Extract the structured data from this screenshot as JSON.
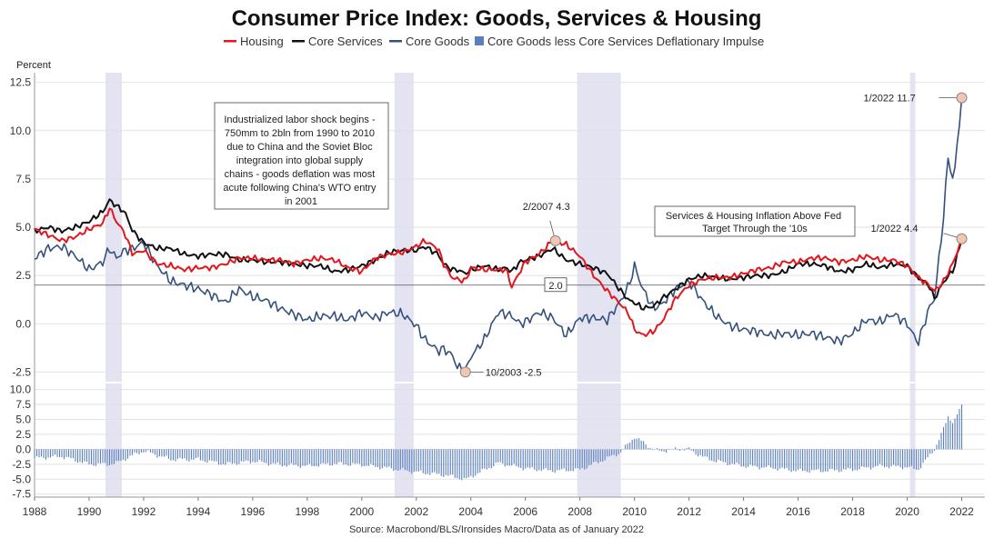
{
  "chart_data": {
    "type": "line",
    "title": "Consumer Price Index: Goods, Services & Housing",
    "ylabel": "Percent",
    "source": "Source: Macrobond/BLS/Ironsides Macro/Data as of January 2022",
    "x_ticks": [
      "1988",
      "1990",
      "1992",
      "1994",
      "1996",
      "1998",
      "2000",
      "2002",
      "2004",
      "2006",
      "2008",
      "2010",
      "2012",
      "2014",
      "2016",
      "2018",
      "2020",
      "2022"
    ],
    "upper_ylim": [
      -3,
      13
    ],
    "upper_ticks": [
      "12.5",
      "10.0",
      "7.5",
      "5.0",
      "2.5",
      "0.0",
      "-2.5"
    ],
    "lower_ylim": [
      -8,
      11
    ],
    "lower_ticks": [
      "10.0",
      "7.5",
      "5.0",
      "2.5",
      "0.0",
      "-2.5",
      "-5.0",
      "-7.5"
    ],
    "recessions": [
      [
        1990.6,
        1991.2
      ],
      [
        2001.2,
        2001.9
      ],
      [
        2007.9,
        2009.5
      ],
      [
        2020.1,
        2020.3
      ]
    ],
    "reference_line": {
      "value": 2.0,
      "label": "2.0"
    },
    "legend": [
      {
        "name": "Housing",
        "color": "#e3161d"
      },
      {
        "name": "Core Services",
        "color": "#111111"
      },
      {
        "name": "Core Goods",
        "color": "#34507e"
      },
      {
        "name": "Core Goods less Core Services Deflationary Impulse",
        "color": "#5a7fbd"
      }
    ],
    "series": [
      {
        "name": "Housing",
        "color": "#e3161d",
        "points": [
          [
            1988,
            4.9
          ],
          [
            1988.5,
            4.6
          ],
          [
            1989,
            4.3
          ],
          [
            1989.5,
            4.5
          ],
          [
            1990,
            4.9
          ],
          [
            1990.5,
            5.2
          ],
          [
            1990.75,
            6.0
          ],
          [
            1991,
            5.3
          ],
          [
            1991.3,
            4.7
          ],
          [
            1991.6,
            3.6
          ],
          [
            1992,
            3.8
          ],
          [
            1992.5,
            3.1
          ],
          [
            1993,
            3.0
          ],
          [
            1993.5,
            2.8
          ],
          [
            1994,
            2.9
          ],
          [
            1994.5,
            2.9
          ],
          [
            1995,
            3.1
          ],
          [
            1995.5,
            3.4
          ],
          [
            1996,
            3.4
          ],
          [
            1996.5,
            3.3
          ],
          [
            1997,
            3.3
          ],
          [
            1997.5,
            3.1
          ],
          [
            1998,
            3.3
          ],
          [
            1998.5,
            3.4
          ],
          [
            1999,
            3.3
          ],
          [
            1999.5,
            2.9
          ],
          [
            2000,
            2.7
          ],
          [
            2000.5,
            3.4
          ],
          [
            2001,
            3.6
          ],
          [
            2001.5,
            3.7
          ],
          [
            2002,
            4.0
          ],
          [
            2002.3,
            4.3
          ],
          [
            2002.8,
            3.9
          ],
          [
            2003,
            3.1
          ],
          [
            2003.3,
            2.4
          ],
          [
            2003.5,
            2.3
          ],
          [
            2003.8,
            2.2
          ],
          [
            2004,
            2.9
          ],
          [
            2004.5,
            2.8
          ],
          [
            2005,
            2.8
          ],
          [
            2005.3,
            2.8
          ],
          [
            2005.5,
            1.9
          ],
          [
            2005.8,
            2.7
          ],
          [
            2006,
            3.2
          ],
          [
            2006.5,
            3.6
          ],
          [
            2007,
            4.3
          ],
          [
            2007.5,
            4.1
          ],
          [
            2008,
            3.5
          ],
          [
            2008.5,
            2.5
          ],
          [
            2009,
            1.7
          ],
          [
            2009.5,
            1.0
          ],
          [
            2009.8,
            0.5
          ],
          [
            2010,
            -0.3
          ],
          [
            2010.3,
            -0.6
          ],
          [
            2010.7,
            -0.4
          ],
          [
            2011,
            0.1
          ],
          [
            2011.5,
            1.3
          ],
          [
            2012,
            2.0
          ],
          [
            2012.5,
            2.3
          ],
          [
            2013,
            2.4
          ],
          [
            2013.5,
            2.4
          ],
          [
            2014,
            2.6
          ],
          [
            2014.5,
            2.8
          ],
          [
            2015,
            2.9
          ],
          [
            2015.5,
            3.2
          ],
          [
            2016,
            3.2
          ],
          [
            2016.5,
            3.4
          ],
          [
            2017,
            3.4
          ],
          [
            2017.5,
            3.2
          ],
          [
            2018,
            3.3
          ],
          [
            2018.5,
            3.5
          ],
          [
            2019,
            3.3
          ],
          [
            2019.5,
            3.3
          ],
          [
            2020,
            3.0
          ],
          [
            2020.4,
            2.4
          ],
          [
            2020.8,
            2.0
          ],
          [
            2021,
            1.7
          ],
          [
            2021.3,
            2.1
          ],
          [
            2021.7,
            3.2
          ],
          [
            2022,
            4.4
          ]
        ]
      },
      {
        "name": "Core Services",
        "color": "#111111",
        "points": [
          [
            1988,
            4.8
          ],
          [
            1988.5,
            5.0
          ],
          [
            1989,
            4.8
          ],
          [
            1989.5,
            5.0
          ],
          [
            1990,
            5.3
          ],
          [
            1990.5,
            5.8
          ],
          [
            1990.75,
            6.4
          ],
          [
            1991,
            6.1
          ],
          [
            1991.3,
            5.8
          ],
          [
            1991.6,
            4.8
          ],
          [
            1992,
            4.2
          ],
          [
            1992.5,
            3.9
          ],
          [
            1993,
            3.9
          ],
          [
            1993.5,
            3.6
          ],
          [
            1994,
            3.5
          ],
          [
            1994.5,
            3.6
          ],
          [
            1995,
            3.6
          ],
          [
            1995.5,
            3.3
          ],
          [
            1996,
            3.3
          ],
          [
            1996.5,
            3.2
          ],
          [
            1997,
            3.2
          ],
          [
            1997.5,
            3.1
          ],
          [
            1998,
            3.0
          ],
          [
            1998.5,
            3.0
          ],
          [
            1999,
            2.7
          ],
          [
            1999.5,
            2.8
          ],
          [
            2000,
            3.0
          ],
          [
            2000.5,
            3.3
          ],
          [
            2001,
            3.7
          ],
          [
            2001.5,
            3.8
          ],
          [
            2002,
            3.8
          ],
          [
            2002.3,
            4.0
          ],
          [
            2002.8,
            3.6
          ],
          [
            2003,
            3.1
          ],
          [
            2003.3,
            2.8
          ],
          [
            2003.5,
            2.8
          ],
          [
            2003.8,
            2.6
          ],
          [
            2004,
            2.8
          ],
          [
            2004.5,
            3.0
          ],
          [
            2005,
            2.8
          ],
          [
            2005.3,
            2.9
          ],
          [
            2005.5,
            2.7
          ],
          [
            2005.8,
            3.2
          ],
          [
            2006,
            3.3
          ],
          [
            2006.5,
            3.5
          ],
          [
            2007,
            3.9
          ],
          [
            2007.5,
            3.3
          ],
          [
            2008,
            3.1
          ],
          [
            2008.5,
            2.9
          ],
          [
            2009,
            2.6
          ],
          [
            2009.5,
            1.7
          ],
          [
            2009.8,
            1.2
          ],
          [
            2010,
            1.1
          ],
          [
            2010.3,
            0.8
          ],
          [
            2010.7,
            0.9
          ],
          [
            2011,
            1.3
          ],
          [
            2011.5,
            1.8
          ],
          [
            2012,
            2.3
          ],
          [
            2012.5,
            2.5
          ],
          [
            2013,
            2.4
          ],
          [
            2013.5,
            2.3
          ],
          [
            2014,
            2.4
          ],
          [
            2014.5,
            2.5
          ],
          [
            2015,
            2.5
          ],
          [
            2015.5,
            2.7
          ],
          [
            2016,
            3.1
          ],
          [
            2016.5,
            3.1
          ],
          [
            2017,
            3.0
          ],
          [
            2017.5,
            2.7
          ],
          [
            2018,
            2.8
          ],
          [
            2018.5,
            3.1
          ],
          [
            2019,
            2.9
          ],
          [
            2019.5,
            3.1
          ],
          [
            2020,
            3.0
          ],
          [
            2020.4,
            2.4
          ],
          [
            2020.8,
            2.0
          ],
          [
            2021,
            1.3
          ],
          [
            2021.3,
            2.1
          ],
          [
            2021.7,
            2.8
          ],
          [
            2022,
            4.4
          ]
        ]
      },
      {
        "name": "Core Goods",
        "color": "#34507e",
        "points": [
          [
            1988,
            3.4
          ],
          [
            1988.5,
            3.9
          ],
          [
            1989,
            4.0
          ],
          [
            1989.5,
            3.5
          ],
          [
            1990,
            2.8
          ],
          [
            1990.5,
            3.2
          ],
          [
            1990.75,
            3.9
          ],
          [
            1991,
            3.4
          ],
          [
            1991.3,
            3.8
          ],
          [
            1991.6,
            3.9
          ],
          [
            1992,
            4.2
          ],
          [
            1992.5,
            3.0
          ],
          [
            1993,
            2.2
          ],
          [
            1993.5,
            2.0
          ],
          [
            1994,
            1.8
          ],
          [
            1994.5,
            1.5
          ],
          [
            1995,
            1.1
          ],
          [
            1995.5,
            1.8
          ],
          [
            1996,
            1.4
          ],
          [
            1996.5,
            1.2
          ],
          [
            1997,
            0.8
          ],
          [
            1997.5,
            0.5
          ],
          [
            1998,
            0.2
          ],
          [
            1998.5,
            0.4
          ],
          [
            1999,
            0.4
          ],
          [
            1999.5,
            0.2
          ],
          [
            2000,
            0.6
          ],
          [
            2000.5,
            0.3
          ],
          [
            2001,
            0.6
          ],
          [
            2001.5,
            0.5
          ],
          [
            2002,
            -0.1
          ],
          [
            2002.3,
            -0.8
          ],
          [
            2002.8,
            -1.4
          ],
          [
            2003,
            -1.3
          ],
          [
            2003.3,
            -1.6
          ],
          [
            2003.5,
            -2.2
          ],
          [
            2003.8,
            -2.5
          ],
          [
            2004,
            -1.7
          ],
          [
            2004.5,
            -0.8
          ],
          [
            2005,
            0.6
          ],
          [
            2005.3,
            0.5
          ],
          [
            2005.5,
            0.4
          ],
          [
            2005.8,
            0.0
          ],
          [
            2006,
            0.1
          ],
          [
            2006.5,
            0.6
          ],
          [
            2007,
            0.3
          ],
          [
            2007.5,
            -0.6
          ],
          [
            2008,
            0.3
          ],
          [
            2008.5,
            0.3
          ],
          [
            2009,
            0.2
          ],
          [
            2009.5,
            1.2
          ],
          [
            2009.8,
            2.0
          ],
          [
            2010,
            3.0
          ],
          [
            2010.3,
            1.8
          ],
          [
            2010.7,
            0.8
          ],
          [
            2011,
            1.0
          ],
          [
            2011.5,
            1.8
          ],
          [
            2012,
            2.2
          ],
          [
            2012.5,
            1.2
          ],
          [
            2013,
            0.4
          ],
          [
            2013.5,
            -0.1
          ],
          [
            2014,
            -0.3
          ],
          [
            2014.5,
            -0.4
          ],
          [
            2015,
            -0.6
          ],
          [
            2015.5,
            -0.5
          ],
          [
            2016,
            -0.6
          ],
          [
            2016.5,
            -0.5
          ],
          [
            2017,
            -0.7
          ],
          [
            2017.5,
            -0.9
          ],
          [
            2018,
            -0.5
          ],
          [
            2018.5,
            0.2
          ],
          [
            2019,
            0.1
          ],
          [
            2019.5,
            0.5
          ],
          [
            2020,
            0.0
          ],
          [
            2020.4,
            -1.0
          ],
          [
            2020.8,
            0.8
          ],
          [
            2021,
            1.3
          ],
          [
            2021.3,
            5.0
          ],
          [
            2021.5,
            8.6
          ],
          [
            2021.7,
            7.3
          ],
          [
            2022,
            11.7
          ]
        ]
      }
    ],
    "impulse_series": {
      "name": "Core Goods less Core Services Deflationary Impulse",
      "color": "#5a7fbd",
      "points": [
        [
          1988,
          -1.5
        ],
        [
          1989,
          -1.2
        ],
        [
          1990,
          -2.5
        ],
        [
          1990.75,
          -2.5
        ],
        [
          1991,
          -2.3
        ],
        [
          1991.6,
          -1.0
        ],
        [
          1992,
          -0.3
        ],
        [
          1993,
          -1.7
        ],
        [
          1994,
          -1.7
        ],
        [
          1995,
          -2.5
        ],
        [
          1996,
          -2.0
        ],
        [
          1997,
          -2.6
        ],
        [
          1998,
          -2.8
        ],
        [
          1999,
          -2.4
        ],
        [
          2000,
          -2.6
        ],
        [
          2001,
          -3.2
        ],
        [
          2002,
          -3.8
        ],
        [
          2003,
          -4.3
        ],
        [
          2003.5,
          -4.7
        ],
        [
          2003.8,
          -5.1
        ],
        [
          2004,
          -4.6
        ],
        [
          2005,
          -2.3
        ],
        [
          2006,
          -3.2
        ],
        [
          2007,
          -3.6
        ],
        [
          2008,
          -3.4
        ],
        [
          2009,
          -1.5
        ],
        [
          2009.5,
          -0.5
        ],
        [
          2010,
          2.1
        ],
        [
          2010.3,
          1.2
        ],
        [
          2010.7,
          -0.1
        ],
        [
          2011,
          -0.3
        ],
        [
          2011.5,
          0.0
        ],
        [
          2012,
          0.0
        ],
        [
          2012.5,
          -1.3
        ],
        [
          2013,
          -2.0
        ],
        [
          2014,
          -2.8
        ],
        [
          2015,
          -3.1
        ],
        [
          2016,
          -3.6
        ],
        [
          2017,
          -3.6
        ],
        [
          2018,
          -3.4
        ],
        [
          2019,
          -2.8
        ],
        [
          2020,
          -3.0
        ],
        [
          2020.4,
          -3.4
        ],
        [
          2020.8,
          -1.2
        ],
        [
          2021,
          0.0
        ],
        [
          2021.3,
          3.0
        ],
        [
          2021.5,
          5.5
        ],
        [
          2021.7,
          4.5
        ],
        [
          2022,
          7.3
        ]
      ]
    },
    "annotations": [
      {
        "text": "1/2022 11.7",
        "x": 2022.0,
        "y": 11.7
      },
      {
        "text": "2/2007 4.3",
        "x": 2007.1,
        "y": 4.3
      },
      {
        "text": "1/2022 4.4",
        "x": 2022.0,
        "y": 4.4
      },
      {
        "text": "10/2003 -2.5",
        "x": 2003.8,
        "y": -2.5
      }
    ],
    "textboxes": [
      {
        "lines": [
          "Industrialized labor shock begins -",
          "750mm to 2bln from 1990 to 2010",
          "due to China and the Soviet Bloc",
          "integration into global supply",
          "chains - goods deflation was most",
          "acute following China's WTO entry",
          "in 2001"
        ]
      },
      {
        "lines": [
          "Services & Housing Inflation Above Fed",
          "Target Through the '10s"
        ]
      }
    ]
  }
}
